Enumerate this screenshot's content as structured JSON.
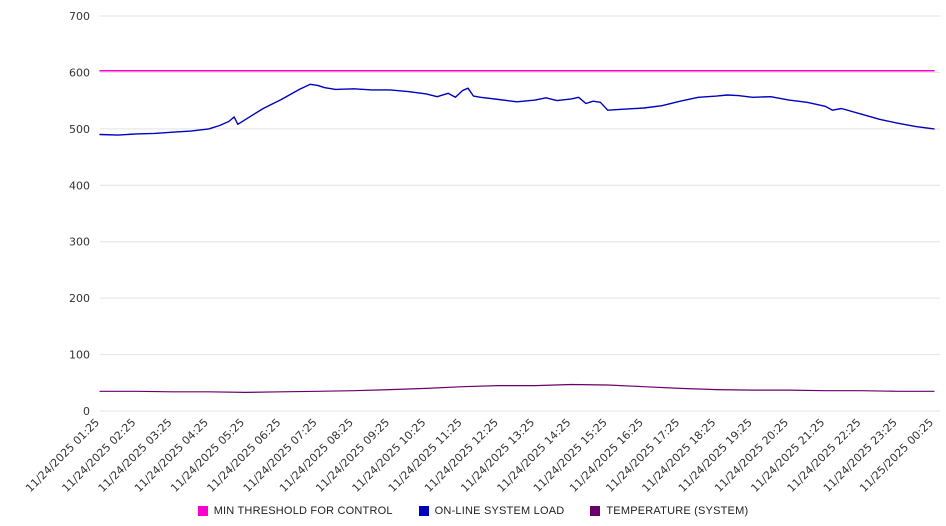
{
  "chart_data": {
    "type": "line",
    "title": "",
    "xlabel": "",
    "ylabel": "",
    "ylim": [
      0,
      700
    ],
    "y_ticks": [
      0,
      100,
      200,
      300,
      400,
      500,
      600,
      700
    ],
    "grid": true,
    "legend_position": "bottom",
    "categories": [
      "11/24/2025 01:25",
      "11/24/2025 02:25",
      "11/24/2025 03:25",
      "11/24/2025 04:25",
      "11/24/2025 05:25",
      "11/24/2025 06:25",
      "11/24/2025 07:25",
      "11/24/2025 08:25",
      "11/24/2025 09:25",
      "11/24/2025 10:25",
      "11/24/2025 11:25",
      "11/24/2025 12:25",
      "11/24/2025 13:25",
      "11/24/2025 14:25",
      "11/24/2025 15:25",
      "11/24/2025 16:25",
      "11/24/2025 17:25",
      "11/24/2025 18:25",
      "11/24/2025 19:25",
      "11/24/2025 20:25",
      "11/24/2025 21:25",
      "11/24/2025 22:25",
      "11/24/2025 23:25",
      "11/25/2025 00:25"
    ],
    "series": [
      {
        "name": "MIN THRESHOLD FOR CONTROL",
        "color": "#ff00cc",
        "width": 1.5,
        "x": [
          0,
          23
        ],
        "values": [
          603,
          603
        ]
      },
      {
        "name": "ON-LINE SYSTEM LOAD",
        "color": "#0000bf",
        "width": 1.4,
        "x": [
          0,
          0.5,
          1,
          1.5,
          2,
          2.5,
          3,
          3.3,
          3.55,
          3.7,
          3.8,
          4,
          4.5,
          5,
          5.5,
          5.8,
          6,
          6.2,
          6.5,
          7,
          7.5,
          8,
          8.5,
          9,
          9.3,
          9.6,
          9.8,
          10,
          10.15,
          10.3,
          10.5,
          11,
          11.5,
          12,
          12.3,
          12.6,
          13,
          13.2,
          13.4,
          13.6,
          13.8,
          14,
          14.5,
          15,
          15.5,
          16,
          16.5,
          17,
          17.3,
          17.6,
          18,
          18.5,
          19,
          19.5,
          20,
          20.2,
          20.45,
          21,
          21.5,
          22,
          22.5,
          23
        ],
        "values": [
          490,
          489,
          491,
          492,
          494,
          496,
          500,
          506,
          513,
          521,
          508,
          516,
          536,
          552,
          570,
          579,
          577,
          573,
          570,
          571,
          569,
          569,
          566,
          562,
          557,
          563,
          556,
          568,
          572,
          558,
          556,
          552,
          548,
          551,
          555,
          550,
          553,
          556,
          545,
          549,
          547,
          533,
          535,
          537,
          541,
          549,
          556,
          558,
          560,
          559,
          556,
          557,
          551,
          547,
          540,
          533,
          536,
          526,
          517,
          510,
          504,
          500
        ]
      },
      {
        "name": "TEMPERATURE (SYSTEM)",
        "color": "#6b006b",
        "width": 1.2,
        "values": [
          35,
          35,
          34,
          34,
          33,
          34,
          35,
          36,
          38,
          40,
          43,
          45,
          45,
          47,
          46,
          43,
          40,
          38,
          37,
          37,
          36,
          36,
          35,
          35
        ]
      }
    ]
  },
  "colors": {
    "gridline": "#e3e3e3",
    "axis_text": "#333333",
    "background": "#ffffff"
  }
}
